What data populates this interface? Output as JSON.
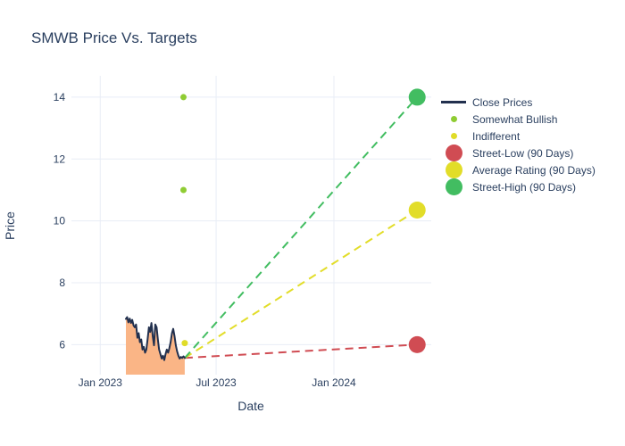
{
  "chart_data": {
    "type": "line",
    "title": "SMWB Price Vs. Targets",
    "xlabel": "Date",
    "ylabel": "Price",
    "x_domain": [
      "2022-11-17",
      "2024-06-01"
    ],
    "y_domain": [
      5.03,
      14.69
    ],
    "x_ticks": [
      {
        "date": "2023-01-01",
        "label": "Jan 2023"
      },
      {
        "date": "2023-07-01",
        "label": "Jul 2023"
      },
      {
        "date": "2024-01-01",
        "label": "Jan 2024"
      }
    ],
    "y_ticks": [
      6,
      8,
      10,
      12,
      14
    ],
    "grid": true,
    "legend_position": "right",
    "colors": {
      "text": "#2a3f5f",
      "grid": "#e8edf6",
      "background": "#ffffff"
    },
    "close_prices": {
      "name": "Close Prices",
      "color": "#22304e",
      "fill_color": "#fab586",
      "dates": [
        "2023-02-10",
        "2023-02-12",
        "2023-02-14",
        "2023-02-16",
        "2023-02-18",
        "2023-02-20",
        "2023-02-22",
        "2023-02-24",
        "2023-02-26",
        "2023-02-28",
        "2023-03-02",
        "2023-03-04",
        "2023-03-06",
        "2023-03-08",
        "2023-03-10",
        "2023-03-12",
        "2023-03-14",
        "2023-03-16",
        "2023-03-18",
        "2023-03-20",
        "2023-03-22",
        "2023-03-24",
        "2023-03-26",
        "2023-03-28",
        "2023-03-30",
        "2023-04-01",
        "2023-04-03",
        "2023-04-05",
        "2023-04-07",
        "2023-04-09",
        "2023-04-11",
        "2023-04-13",
        "2023-04-15",
        "2023-04-17",
        "2023-04-19",
        "2023-04-21",
        "2023-04-23",
        "2023-04-25",
        "2023-04-27",
        "2023-04-29",
        "2023-05-01",
        "2023-05-03",
        "2023-05-05",
        "2023-05-07",
        "2023-05-09",
        "2023-05-11",
        "2023-05-13"
      ],
      "prices": [
        6.83,
        6.89,
        6.72,
        6.84,
        6.7,
        6.8,
        6.62,
        6.56,
        6.65,
        6.22,
        6.37,
        6.08,
        6.17,
        5.84,
        5.93,
        5.74,
        5.84,
        6.17,
        6.56,
        6.41,
        6.7,
        6.27,
        5.98,
        6.65,
        6.56,
        6.17,
        5.84,
        5.69,
        5.55,
        5.64,
        5.5,
        5.69,
        5.84,
        5.74,
        5.89,
        6.08,
        6.37,
        6.51,
        6.27,
        5.98,
        5.79,
        5.64,
        5.55,
        5.6,
        5.57,
        5.62,
        5.57
      ]
    },
    "ratings": [
      {
        "name": "Somewhat Bullish",
        "color": "#8fcc33",
        "points": [
          {
            "date": "2023-05-11",
            "price": 14.0
          },
          {
            "date": "2023-05-11",
            "price": 11.0
          }
        ]
      },
      {
        "name": "Indifferent",
        "color": "#e0dc28",
        "points": [
          {
            "date": "2023-05-13",
            "price": 6.05
          }
        ]
      }
    ],
    "targets": [
      {
        "name": "Street-Low (90 Days)",
        "color": "#d04c53",
        "date": "2024-05-10",
        "price": 6.0
      },
      {
        "name": "Average Rating (90 Days)",
        "color": "#e2dd29",
        "date": "2024-05-10",
        "price": 10.35
      },
      {
        "name": "Street-High (90 Days)",
        "color": "#42bd61",
        "date": "2024-05-10",
        "price": 14.0
      }
    ],
    "legend": [
      {
        "label": "Close Prices",
        "marker": "line",
        "color": "#22304e"
      },
      {
        "label": "Somewhat Bullish",
        "marker": "dot-small",
        "color": "#8fcc33"
      },
      {
        "label": "Indifferent",
        "marker": "dot-small",
        "color": "#e0dc28"
      },
      {
        "label": "Street-Low (90 Days)",
        "marker": "dot-large",
        "color": "#d04c53"
      },
      {
        "label": "Average Rating (90 Days)",
        "marker": "dot-large",
        "color": "#e2dd29"
      },
      {
        "label": "Street-High (90 Days)",
        "marker": "dot-large",
        "color": "#42bd61"
      }
    ]
  }
}
